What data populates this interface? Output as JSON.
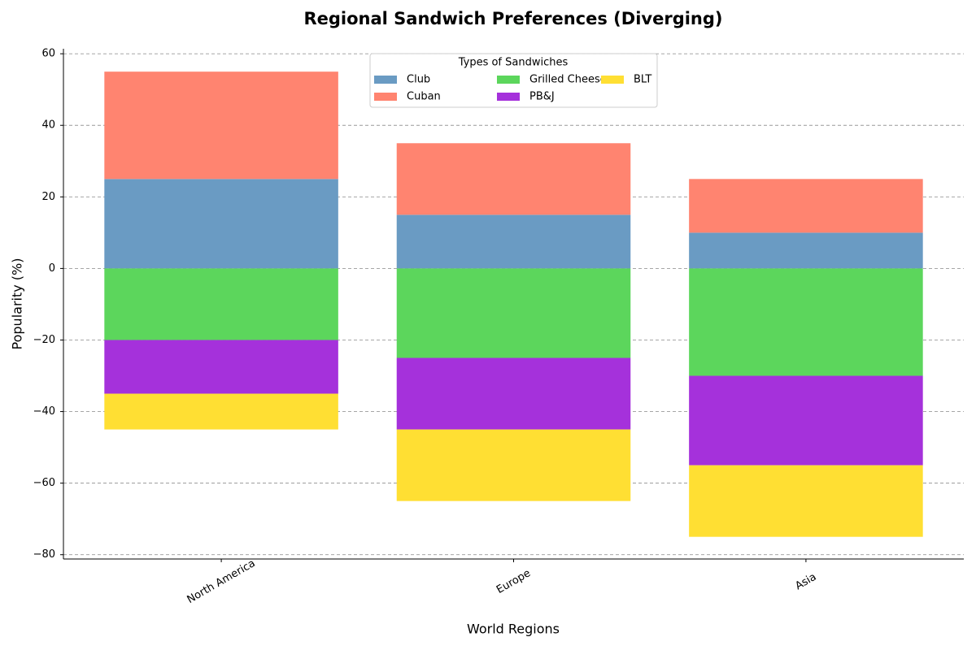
{
  "chart_data": {
    "type": "bar",
    "stacked": "diverging",
    "title": "Regional Sandwich Preferences (Diverging)",
    "x_label": "World Regions",
    "y_label": "Popularity (%)",
    "categories": [
      "North America",
      "Europe",
      "Asia"
    ],
    "legend_title": "Types of Sandwiches",
    "legend_position": "upper center",
    "series": [
      {
        "name": "Club",
        "color": "#6a9bc3",
        "values": [
          25,
          15,
          10
        ]
      },
      {
        "name": "Cuban",
        "color": "#ff8470",
        "values": [
          30,
          20,
          15
        ]
      },
      {
        "name": "Grilled Cheese",
        "color": "#5cd65c",
        "values": [
          -20,
          -25,
          -30
        ]
      },
      {
        "name": "PB&J",
        "color": "#a531db",
        "values": [
          -15,
          -20,
          -25
        ]
      },
      {
        "name": "BLT",
        "color": "#ffdf33",
        "values": [
          -10,
          -20,
          -20
        ]
      }
    ],
    "ylim": [
      -81.2,
      61.4
    ],
    "yticks": [
      {
        "value": -80,
        "label": "−80"
      },
      {
        "value": -60,
        "label": "−60"
      },
      {
        "value": -40,
        "label": "−40"
      },
      {
        "value": -20,
        "label": "−20"
      },
      0,
      20,
      40,
      60
    ],
    "grid": true
  }
}
